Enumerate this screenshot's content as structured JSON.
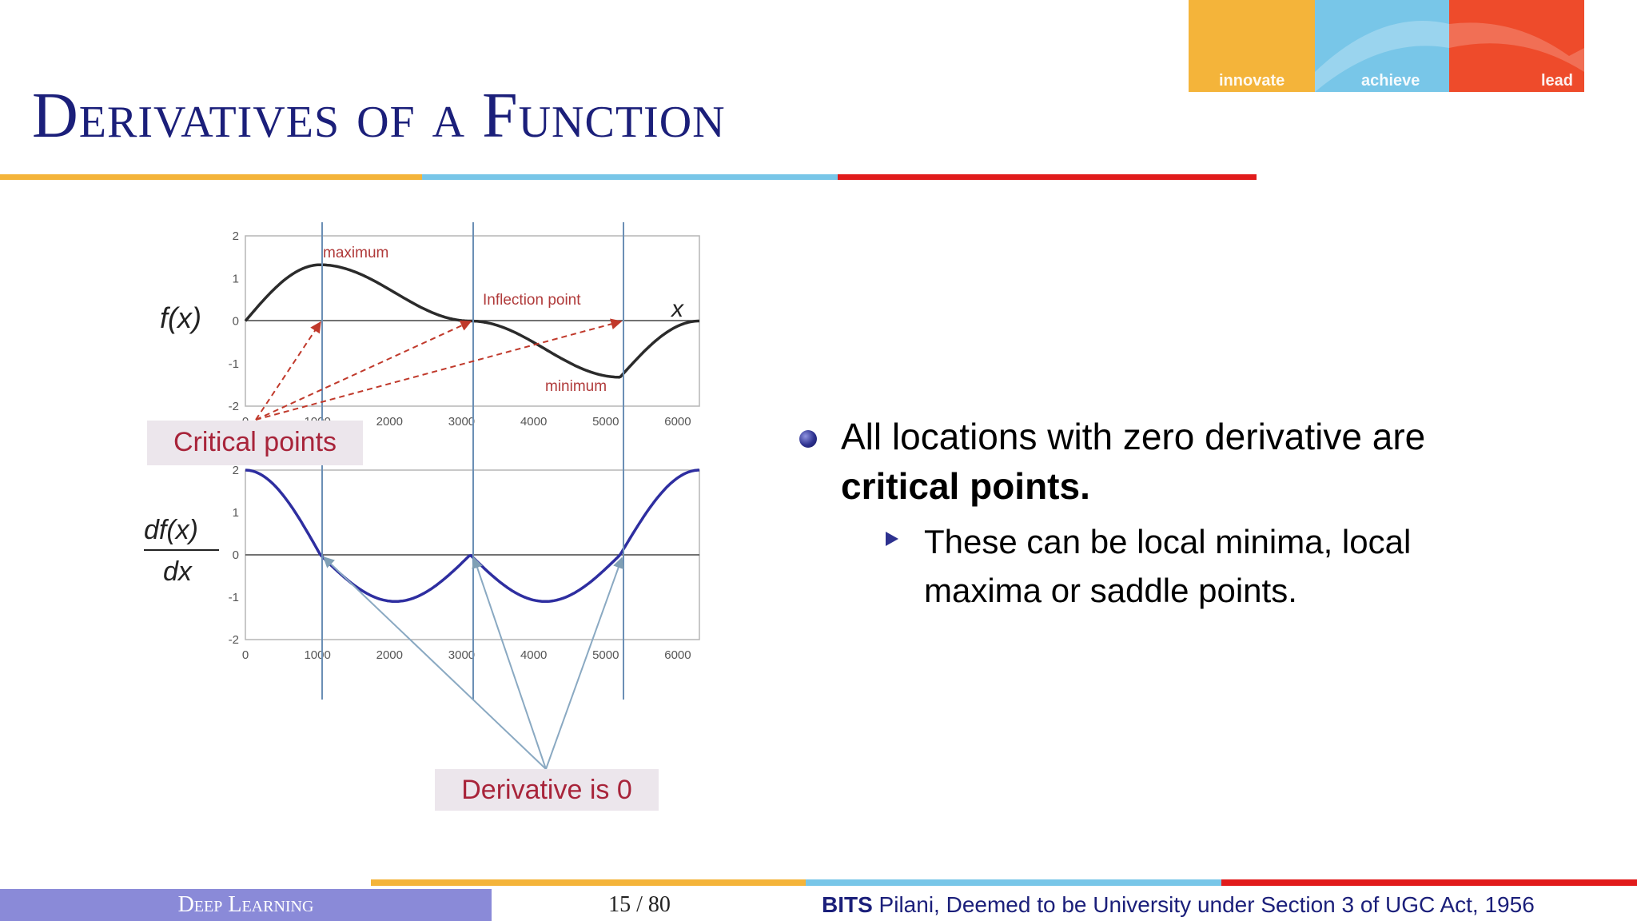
{
  "logo": {
    "segments": [
      {
        "label": "innovate",
        "color": "#f4b43a"
      },
      {
        "label": "achieve",
        "color": "#78c6e8"
      },
      {
        "label": "lead",
        "color": "#ee4b2b"
      }
    ]
  },
  "slide": {
    "title": "Derivatives of a Function"
  },
  "figure": {
    "top_plot": {
      "ylabel": "f(x)",
      "xaxis_label": "x",
      "annotations": {
        "maximum": "maximum",
        "inflection": "Inflection point",
        "minimum": "minimum"
      }
    },
    "bottom_plot": {
      "ylabel_num": "df(x)",
      "ylabel_den": "dx"
    },
    "y_ticks": [
      "2",
      "1",
      "0",
      "-1",
      "-2"
    ],
    "x_ticks": [
      "0",
      "1000",
      "2000",
      "3000",
      "4000",
      "5000",
      "6000"
    ],
    "critical_points_label": "Critical points",
    "derivative_zero_label": "Derivative is 0"
  },
  "bullets": {
    "main_text": "All locations with zero derivative are",
    "main_bold": "critical points.",
    "sub_line1": "These can be local minima, local",
    "sub_line2": "maxima or saddle points."
  },
  "footer": {
    "course": "Deep Learning",
    "page": "15 / 80",
    "institution_bold": "BITS",
    "institution_rest": " Pilani, Deemed to be University under Section 3 of UGC Act, 1956"
  },
  "colors": {
    "title": "#1b1f7a",
    "orange": "#f4b43a",
    "blue": "#78c6e8",
    "red": "#e11b1b",
    "footer_left": "#8a8ad8"
  }
}
